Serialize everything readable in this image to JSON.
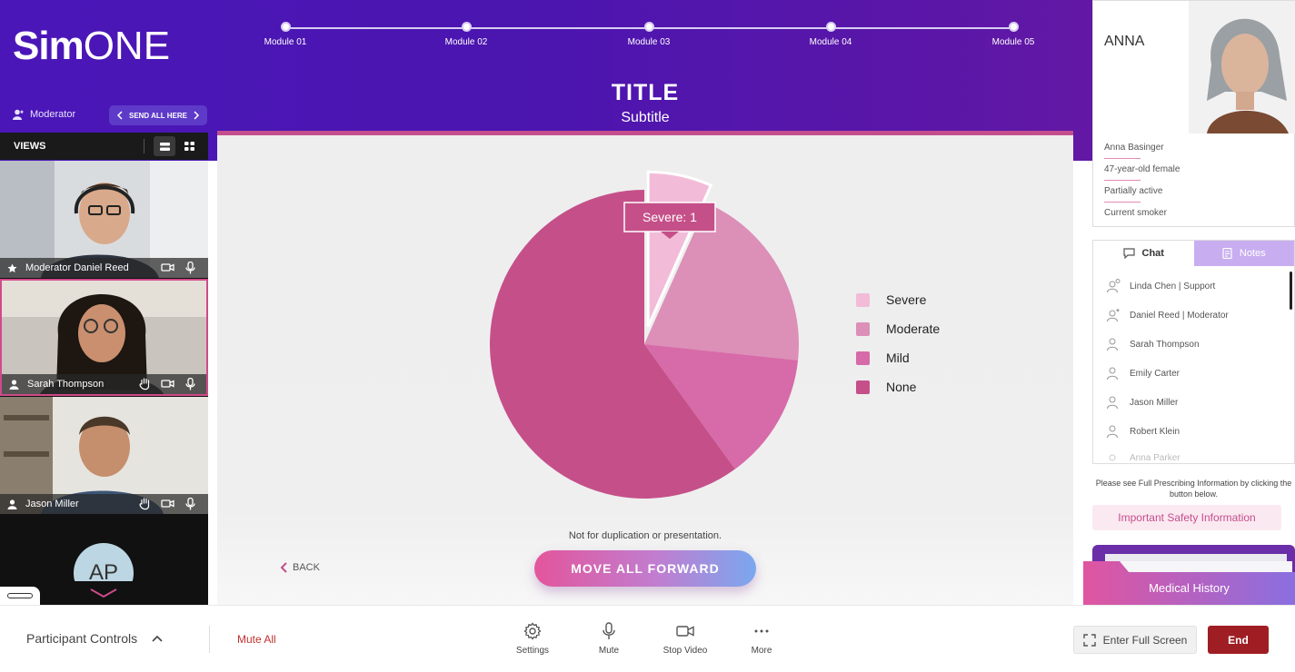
{
  "brand": {
    "logo_part1": "Sim",
    "logo_part2": "ONE"
  },
  "modules": [
    "Module 01",
    "Module 02",
    "Module 03",
    "Module 04",
    "Module 05"
  ],
  "header": {
    "title": "TITLE",
    "subtitle": "Subtitle",
    "moderator_label": "Moderator",
    "send_all": "SEND ALL HERE"
  },
  "views": {
    "label": "VIEWS"
  },
  "participants_video": [
    {
      "name": "Moderator Daniel Reed"
    },
    {
      "name": "Sarah Thompson"
    },
    {
      "name": "Jason Miller"
    }
  ],
  "avatar_initials": "AP",
  "chart_data": {
    "type": "pie",
    "categories": [
      "Severe",
      "Moderate",
      "Mild",
      "None"
    ],
    "values": [
      1,
      3,
      2,
      9
    ],
    "highlighted": "Severe",
    "tooltip": "Severe: 1",
    "colors": [
      "#f2bcd8",
      "#dc8fb7",
      "#d76aa8",
      "#c55089"
    ],
    "legend_position": "right"
  },
  "stage": {
    "disclaimer": "Not for duplication or presentation.",
    "back_label": "BACK",
    "forward_label": "MOVE ALL FORWARD"
  },
  "profile": {
    "name": "ANNA",
    "details": [
      "Anna Basinger",
      "47-year-old female",
      "Partially active",
      "Current smoker"
    ]
  },
  "chat_panel": {
    "tab_chat": "Chat",
    "tab_notes": "Notes",
    "participants": [
      "Linda Chen | Support",
      "Daniel Reed | Moderator",
      "Sarah Thompson",
      "Emily Carter",
      "Jason Miller",
      "Robert Klein",
      "Anna Parker"
    ]
  },
  "safety": {
    "note": "Please see Full Prescribing Information by clicking the button below.",
    "button": "Important Safety Information"
  },
  "medical_history": "Medical History",
  "footer": {
    "participant_controls": "Participant Controls",
    "mute_all": "Mute All",
    "settings": "Settings",
    "mute": "Mute",
    "stop_video": "Stop Video",
    "more": "More",
    "full_screen": "Enter Full Screen",
    "end": "End"
  },
  "colors": {
    "brand_purple": "#4b15b0",
    "accent_pink": "#c44e8d",
    "end_red": "#9f1e24"
  }
}
